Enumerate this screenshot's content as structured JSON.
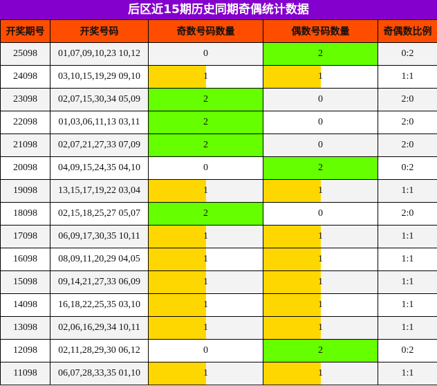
{
  "title": "后区近15期历史同期奇偶统计数据",
  "colors": {
    "title_bg": "#8400cc",
    "header_bg": "#ff4d00",
    "bar_one": "#ffd700",
    "bar_two": "#66ff00"
  },
  "headers": [
    "开奖期号",
    "开奖号码",
    "奇数号码数量",
    "偶数号码数量",
    "奇偶数比例"
  ],
  "chart_data": {
    "type": "table",
    "title": "后区近15期历史同期奇偶统计数据",
    "columns": [
      "开奖期号",
      "开奖号码",
      "奇数号码数量",
      "偶数号码数量",
      "奇偶数比例"
    ],
    "bar_max": 2,
    "rows": [
      {
        "period": "25098",
        "numbers": "01,07,09,10,23 10,12",
        "odd": 0,
        "even": 2,
        "ratio": "0:2"
      },
      {
        "period": "24098",
        "numbers": "03,10,15,19,29 09,10",
        "odd": 1,
        "even": 1,
        "ratio": "1:1"
      },
      {
        "period": "23098",
        "numbers": "02,07,15,30,34 05,09",
        "odd": 2,
        "even": 0,
        "ratio": "2:0"
      },
      {
        "period": "22098",
        "numbers": "01,03,06,11,13 03,11",
        "odd": 2,
        "even": 0,
        "ratio": "2:0"
      },
      {
        "period": "21098",
        "numbers": "02,07,21,27,33 07,09",
        "odd": 2,
        "even": 0,
        "ratio": "2:0"
      },
      {
        "period": "20098",
        "numbers": "04,09,15,24,35 04,10",
        "odd": 0,
        "even": 2,
        "ratio": "0:2"
      },
      {
        "period": "19098",
        "numbers": "13,15,17,19,22 03,04",
        "odd": 1,
        "even": 1,
        "ratio": "1:1"
      },
      {
        "period": "18098",
        "numbers": "02,15,18,25,27 05,07",
        "odd": 2,
        "even": 0,
        "ratio": "2:0"
      },
      {
        "period": "17098",
        "numbers": "06,09,17,30,35 10,11",
        "odd": 1,
        "even": 1,
        "ratio": "1:1"
      },
      {
        "period": "16098",
        "numbers": "08,09,11,20,29 04,05",
        "odd": 1,
        "even": 1,
        "ratio": "1:1"
      },
      {
        "period": "15098",
        "numbers": "09,14,21,27,33 06,09",
        "odd": 1,
        "even": 1,
        "ratio": "1:1"
      },
      {
        "period": "14098",
        "numbers": "16,18,22,25,35 03,10",
        "odd": 1,
        "even": 1,
        "ratio": "1:1"
      },
      {
        "period": "13098",
        "numbers": "02,06,16,29,34 10,11",
        "odd": 1,
        "even": 1,
        "ratio": "1:1"
      },
      {
        "period": "12098",
        "numbers": "02,11,28,29,30 06,12",
        "odd": 0,
        "even": 2,
        "ratio": "0:2"
      },
      {
        "period": "11098",
        "numbers": "06,07,28,33,35 01,10",
        "odd": 1,
        "even": 1,
        "ratio": "1:1"
      }
    ]
  }
}
